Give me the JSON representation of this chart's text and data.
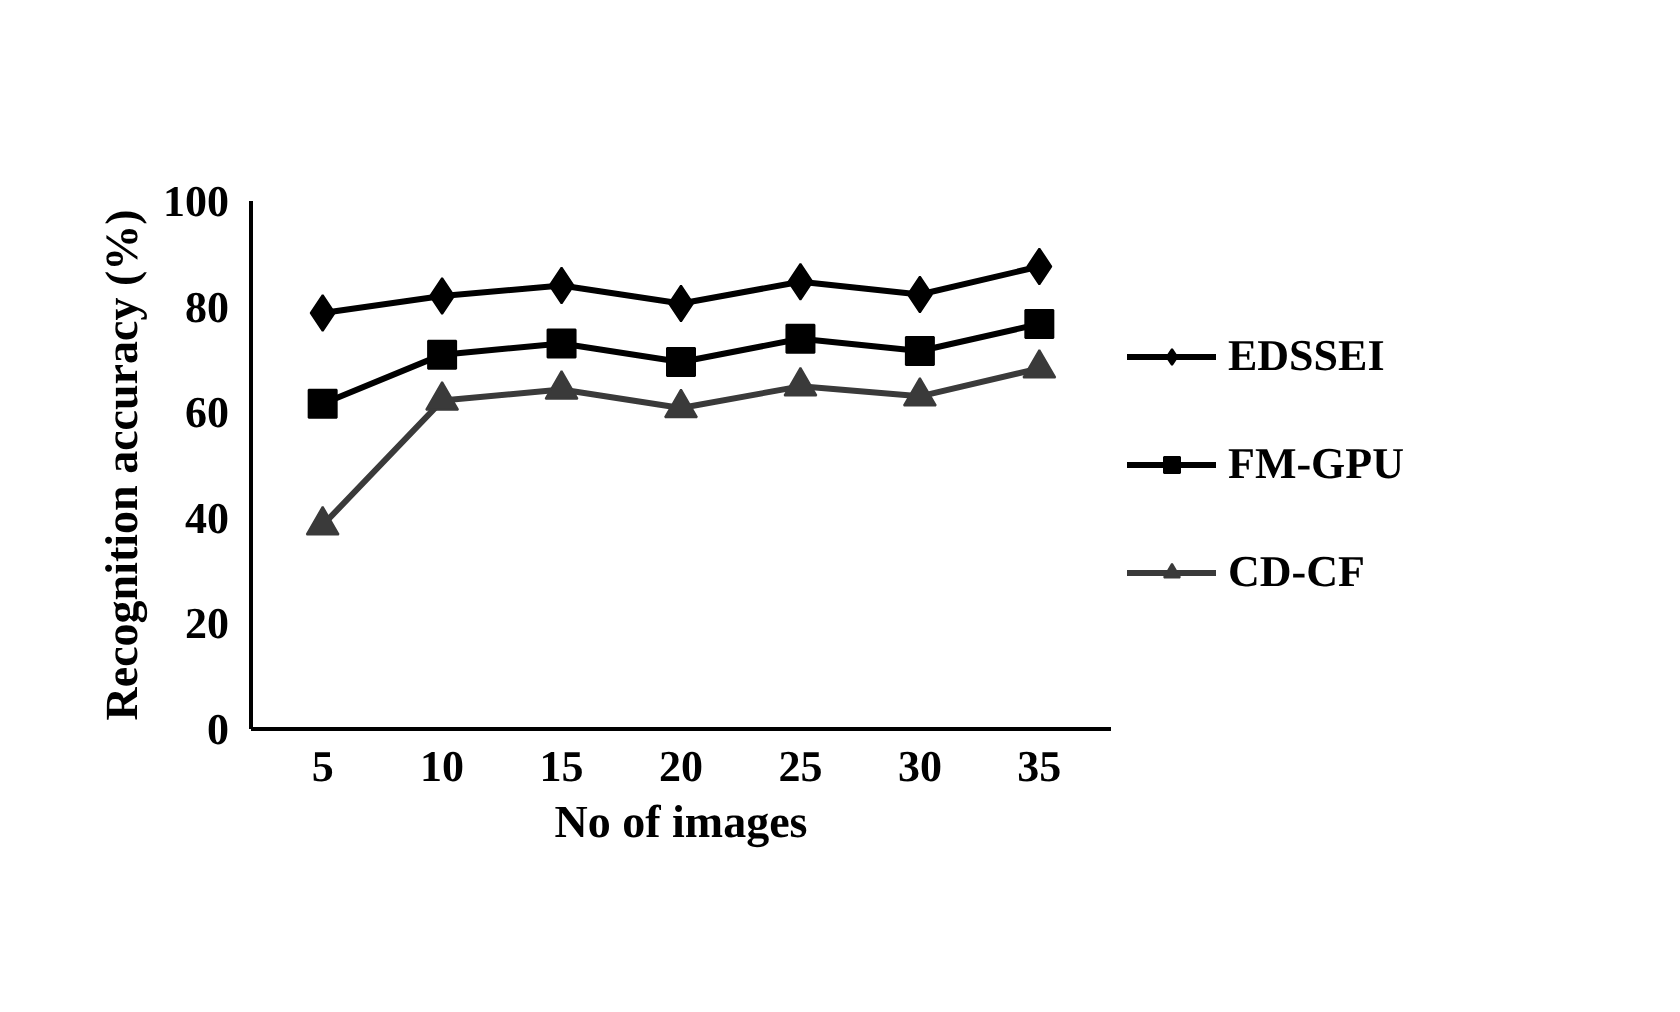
{
  "chart_data": {
    "type": "line",
    "xlabel": "No of images",
    "ylabel": "Recognition accuracy (%)",
    "categories": [
      "5",
      "10",
      "15",
      "20",
      "25",
      "30",
      "35"
    ],
    "ylim": [
      0,
      100
    ],
    "yticks": [
      0,
      20,
      40,
      60,
      80,
      100
    ],
    "grid": false,
    "legend": "right",
    "series": [
      {
        "name": "EDSSEI",
        "color": "#000000",
        "marker": "diamond",
        "values": [
          78.8,
          82,
          84,
          80.6,
          84.7,
          82.3,
          87.6
        ]
      },
      {
        "name": "FM-GPU",
        "color": "#000000",
        "marker": "square",
        "values": [
          61.6,
          70.9,
          73,
          69.5,
          73.9,
          71.6,
          76.7
        ]
      },
      {
        "name": "CD-CF",
        "color": "#3a3a3a",
        "marker": "triangle",
        "values": [
          38.6,
          62.2,
          64.3,
          60.8,
          64.9,
          63,
          68.3
        ]
      }
    ]
  }
}
